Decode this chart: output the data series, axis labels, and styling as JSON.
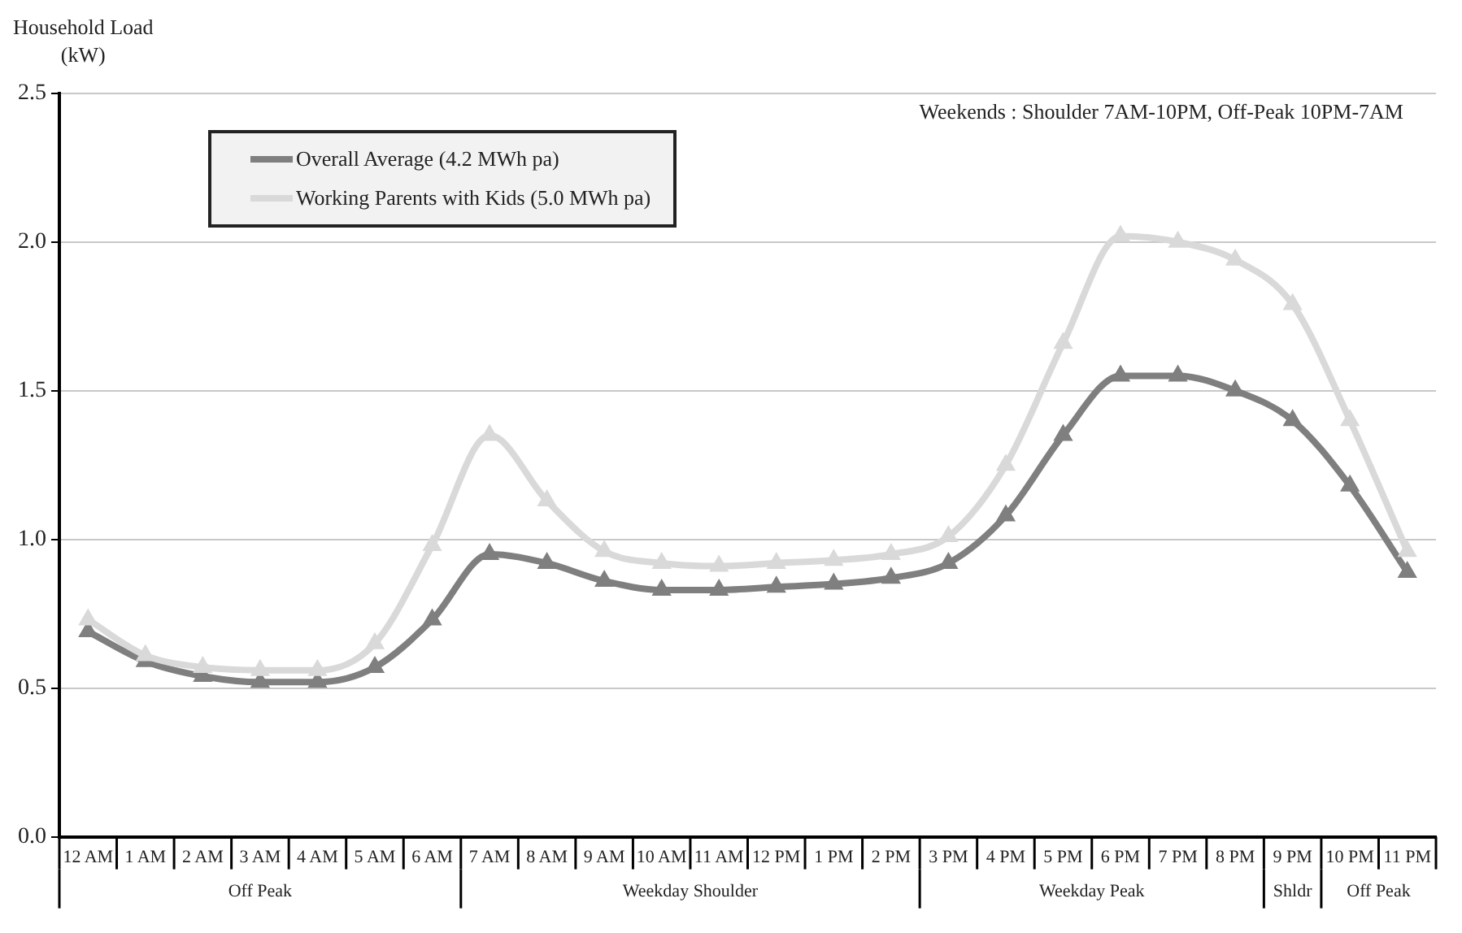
{
  "chart_data": {
    "type": "line",
    "ylabel": "Household Load\n(kW)",
    "categories": [
      "12 AM",
      "1 AM",
      "2 AM",
      "3 AM",
      "4 AM",
      "5 AM",
      "6 AM",
      "7 AM",
      "8 AM",
      "9 AM",
      "10 AM",
      "11 AM",
      "12 PM",
      "1 PM",
      "2 PM",
      "3 PM",
      "4 PM",
      "5 PM",
      "6 PM",
      "7 PM",
      "8 PM",
      "9 PM",
      "10 PM",
      "11 PM"
    ],
    "series": [
      {
        "name": "Overall Average (4.2 MWh pa)",
        "color": "#7f7f7f",
        "values": [
          0.69,
          0.59,
          0.54,
          0.52,
          0.52,
          0.57,
          0.73,
          0.95,
          0.92,
          0.86,
          0.83,
          0.83,
          0.84,
          0.85,
          0.87,
          0.92,
          1.08,
          1.35,
          1.55,
          1.55,
          1.5,
          1.4,
          1.18,
          0.89
        ]
      },
      {
        "name": "Working Parents with Kids (5.0 MWh pa)",
        "color": "#d9d9d9",
        "values": [
          0.73,
          0.61,
          0.57,
          0.56,
          0.56,
          0.65,
          0.98,
          1.35,
          1.13,
          0.96,
          0.92,
          0.91,
          0.92,
          0.93,
          0.95,
          1.01,
          1.25,
          1.66,
          2.02,
          2.0,
          1.94,
          1.79,
          1.4,
          0.96
        ]
      }
    ],
    "ylim": [
      0,
      2.5
    ],
    "yticks": [
      {
        "value": 0,
        "label": "0.0"
      },
      0.5,
      {
        "value": 1,
        "label": "1.0"
      },
      1.5,
      {
        "value": 2,
        "label": "2.0"
      },
      2.5
    ],
    "annotations": [
      "Weekends : Shoulder 7AM-10PM, Off-Peak 10PM-7AM",
      "Off Peak",
      "Weekday Shoulder",
      "Weekday Peak",
      "Shldr",
      "Off Peak"
    ],
    "grid": "y",
    "legend": "top left",
    "marker": "triangle",
    "line_style": "solid"
  }
}
